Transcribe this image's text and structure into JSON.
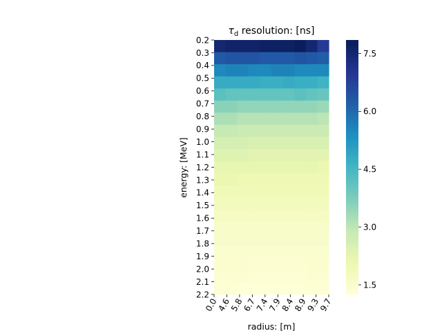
{
  "chart_data": {
    "type": "heatmap",
    "title": {
      "symbol": "τ",
      "subscript": "d",
      "text": " resolution: [ns]"
    },
    "xlabel": "radius: [m]",
    "ylabel": "energy: [MeV]",
    "x_ticks": [
      "0.0",
      "4.6",
      "5.8",
      "6.7",
      "7.4",
      "7.9",
      "8.4",
      "8.9",
      "9.3",
      "9.7"
    ],
    "y_ticks": [
      "0.2",
      "0.3",
      "0.4",
      "0.5",
      "0.6",
      "0.7",
      "0.8",
      "0.9",
      "1.0",
      "1.1",
      "1.2",
      "1.3",
      "1.4",
      "1.5",
      "1.6",
      "1.7",
      "1.8",
      "1.9",
      "2.0",
      "2.1",
      "2.2"
    ],
    "colorbar": {
      "colormap": "YlGnBu",
      "vmin": 1.25,
      "vmax": 7.85,
      "ticks": [
        "1.5",
        "3.0",
        "4.5",
        "6.0",
        "7.5"
      ]
    },
    "values": [
      [
        7.5,
        7.6,
        7.6,
        7.6,
        7.7,
        7.7,
        7.7,
        7.8,
        7.5,
        6.9
      ],
      [
        6.3,
        6.4,
        6.4,
        6.4,
        6.3,
        6.3,
        6.3,
        6.4,
        6.3,
        6.2
      ],
      [
        5.5,
        5.6,
        5.6,
        5.5,
        5.5,
        5.6,
        5.6,
        5.5,
        5.5,
        5.5
      ],
      [
        4.8,
        4.8,
        4.8,
        4.8,
        4.7,
        4.7,
        4.8,
        4.7,
        4.7,
        4.6
      ],
      [
        4.2,
        4.1,
        4.1,
        4.1,
        4.1,
        4.1,
        4.1,
        4.2,
        4.1,
        4.0
      ],
      [
        3.6,
        3.6,
        3.5,
        3.5,
        3.5,
        3.5,
        3.5,
        3.5,
        3.5,
        3.4
      ],
      [
        3.2,
        3.2,
        3.1,
        3.1,
        3.1,
        3.1,
        3.1,
        3.1,
        3.1,
        3.0
      ],
      [
        2.9,
        2.9,
        2.8,
        2.8,
        2.8,
        2.8,
        2.8,
        2.8,
        2.8,
        2.8
      ],
      [
        2.6,
        2.6,
        2.6,
        2.5,
        2.5,
        2.5,
        2.5,
        2.5,
        2.5,
        2.5
      ],
      [
        2.4,
        2.4,
        2.4,
        2.3,
        2.3,
        2.3,
        2.3,
        2.3,
        2.3,
        2.3
      ],
      [
        2.2,
        2.2,
        2.2,
        2.2,
        2.2,
        2.2,
        2.2,
        2.2,
        2.2,
        2.1
      ],
      [
        2.1,
        2.1,
        2.0,
        2.0,
        2.0,
        2.0,
        2.0,
        2.0,
        2.0,
        2.0
      ],
      [
        1.9,
        1.9,
        1.9,
        1.9,
        1.9,
        1.9,
        1.9,
        1.9,
        1.9,
        1.9
      ],
      [
        1.8,
        1.8,
        1.8,
        1.8,
        1.8,
        1.8,
        1.8,
        1.8,
        1.8,
        1.8
      ],
      [
        1.7,
        1.7,
        1.7,
        1.7,
        1.7,
        1.7,
        1.7,
        1.7,
        1.7,
        1.7
      ],
      [
        1.6,
        1.6,
        1.6,
        1.6,
        1.6,
        1.6,
        1.6,
        1.6,
        1.6,
        1.6
      ],
      [
        1.55,
        1.55,
        1.55,
        1.55,
        1.55,
        1.55,
        1.55,
        1.55,
        1.55,
        1.55
      ],
      [
        1.5,
        1.5,
        1.5,
        1.5,
        1.5,
        1.5,
        1.5,
        1.5,
        1.5,
        1.5
      ],
      [
        1.45,
        1.45,
        1.45,
        1.4,
        1.4,
        1.4,
        1.4,
        1.4,
        1.45,
        1.45
      ],
      [
        1.4,
        1.4,
        1.4,
        1.35,
        1.35,
        1.35,
        1.35,
        1.35,
        1.4,
        1.4
      ],
      [
        1.35,
        1.35,
        1.3,
        1.3,
        1.3,
        1.3,
        1.3,
        1.3,
        1.35,
        1.35
      ]
    ]
  }
}
